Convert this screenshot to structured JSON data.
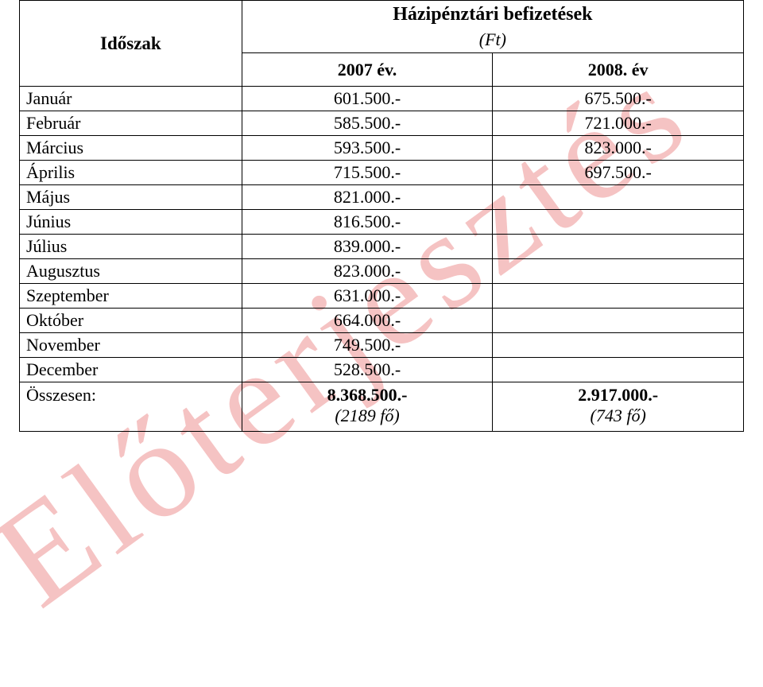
{
  "watermark_text": "Előterjesztés",
  "header": {
    "period_label": "Időszak",
    "title": "Házipénztári befizetések",
    "unit": "(Ft)",
    "year1": "2007 év.",
    "year2": "2008. év"
  },
  "rows": [
    {
      "month": "Január",
      "y2007": "601.500.-",
      "y2008": "675.500.-"
    },
    {
      "month": "Február",
      "y2007": "585.500.-",
      "y2008": "721.000.-"
    },
    {
      "month": "Március",
      "y2007": "593.500.-",
      "y2008": "823.000.-"
    },
    {
      "month": "Április",
      "y2007": "715.500.-",
      "y2008": "697.500.-"
    },
    {
      "month": "Május",
      "y2007": "821.000.-",
      "y2008": ""
    },
    {
      "month": "Június",
      "y2007": "816.500.-",
      "y2008": ""
    },
    {
      "month": "Július",
      "y2007": "839.000.-",
      "y2008": ""
    },
    {
      "month": "Augusztus",
      "y2007": "823.000.-",
      "y2008": ""
    },
    {
      "month": "Szeptember",
      "y2007": "631.000.-",
      "y2008": ""
    },
    {
      "month": "Október",
      "y2007": "664.000.-",
      "y2008": ""
    },
    {
      "month": "November",
      "y2007": "749.500.-",
      "y2008": ""
    },
    {
      "month": "December",
      "y2007": "528.500.-",
      "y2008": ""
    }
  ],
  "total": {
    "label": "Összesen:",
    "y2007": "8.368.500.-",
    "y2007_sub": "(2189 fő)",
    "y2008": "2.917.000.-",
    "y2008_sub": "(743 fő)"
  },
  "colors": {
    "watermark": "#f5c3c3",
    "text": "#000000",
    "border": "#000000",
    "background": "#ffffff"
  }
}
